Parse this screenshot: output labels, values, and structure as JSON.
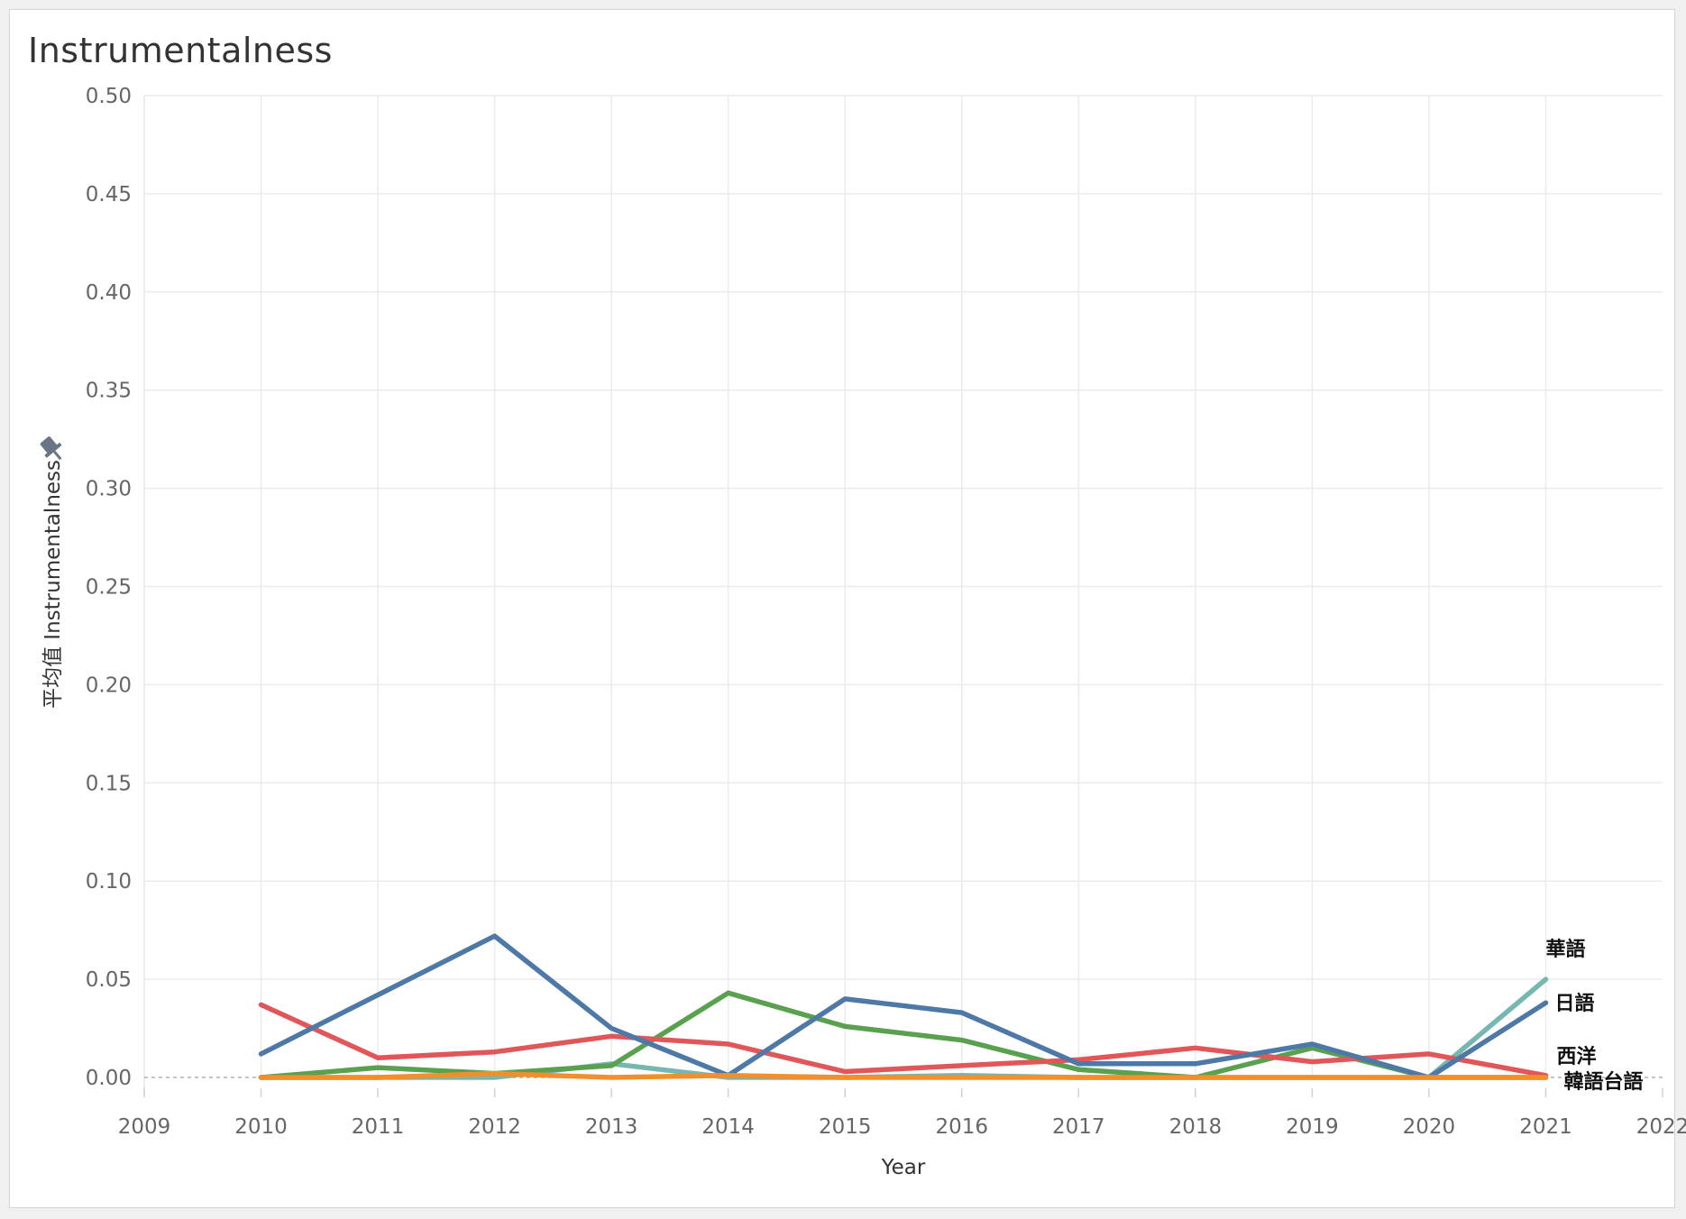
{
  "chart_data": {
    "type": "line",
    "title": "Instrumentalness",
    "xlabel": "Year",
    "ylabel": "平均值 Instrumentalness",
    "xlim": [
      2009,
      2022
    ],
    "ylim": [
      0,
      0.5
    ],
    "x_ticks": [
      "2009",
      "2010",
      "2011",
      "2012",
      "2013",
      "2014",
      "2015",
      "2016",
      "2017",
      "2018",
      "2019",
      "2020",
      "2021",
      "2022"
    ],
    "y_ticks": [
      "0.00",
      "0.05",
      "0.10",
      "0.15",
      "0.20",
      "0.25",
      "0.30",
      "0.35",
      "0.40",
      "0.45",
      "0.50"
    ],
    "grid": true,
    "x": [
      2010,
      2011,
      2012,
      2013,
      2014,
      2015,
      2016,
      2017,
      2018,
      2019,
      2020,
      2021
    ],
    "series": [
      {
        "name": "華語",
        "color": "#76b7b2",
        "values": [
          0.0,
          0.0,
          0.0,
          0.007,
          0.0,
          0.0,
          0.001,
          0.0,
          0.0,
          0.0,
          0.0,
          0.05
        ]
      },
      {
        "name": "",
        "color": "#59a14f",
        "values": [
          0.0,
          0.005,
          0.002,
          0.006,
          0.043,
          0.026,
          0.019,
          0.004,
          0.0,
          0.015,
          0.0,
          0.0
        ]
      },
      {
        "name": "西洋",
        "color": "#e15759",
        "values": [
          0.037,
          0.01,
          0.013,
          0.021,
          0.017,
          0.003,
          0.006,
          0.009,
          0.015,
          0.008,
          0.012,
          0.001
        ]
      },
      {
        "name": "日語",
        "color": "#4e79a7",
        "values": [
          0.012,
          0.042,
          0.072,
          0.025,
          0.001,
          0.04,
          0.033,
          0.007,
          0.007,
          0.017,
          0.0,
          0.038
        ]
      },
      {
        "name": "韓語",
        "color": "#f28e2b",
        "values": [
          0.0,
          0.0,
          0.002,
          0.0,
          0.001,
          0.0,
          0.0,
          0.0,
          0.0,
          0.0,
          0.0,
          0.0
        ]
      }
    ],
    "end_labels": [
      {
        "text": "華語",
        "series": 0
      },
      {
        "text": "日語",
        "series": 3
      },
      {
        "text": "西洋",
        "series": 2
      },
      {
        "text": "韓語台語",
        "series": 4
      }
    ]
  }
}
